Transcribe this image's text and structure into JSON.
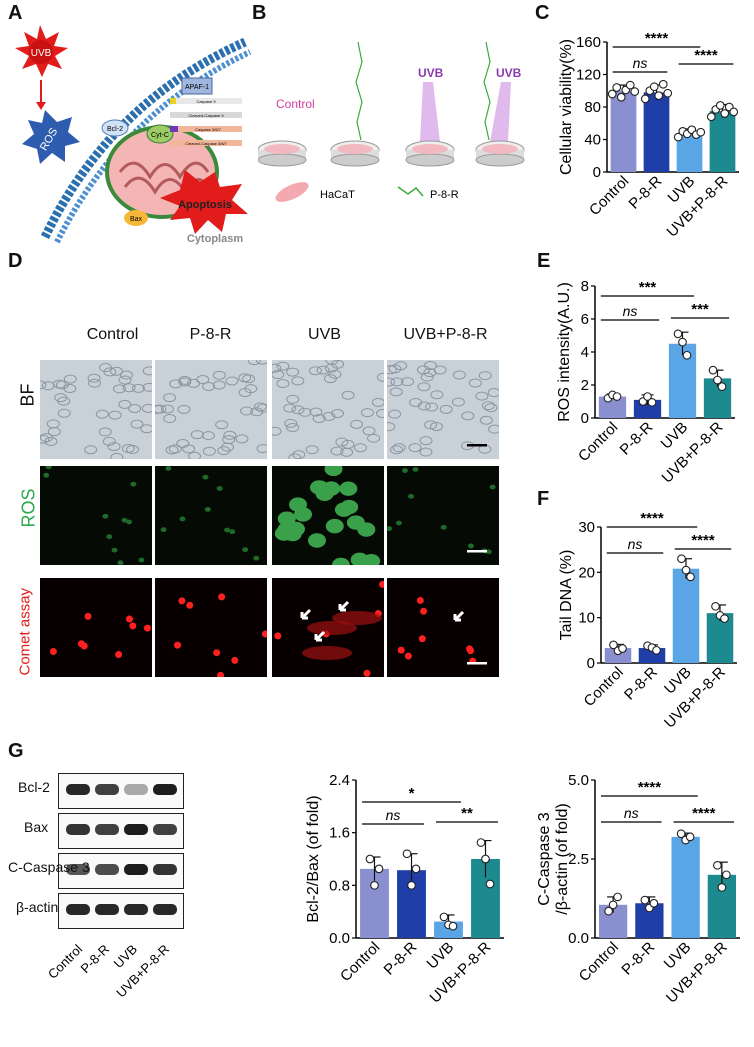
{
  "panels": {
    "A": "A",
    "B": "B",
    "C": "C",
    "D": "D",
    "E": "E",
    "F": "F",
    "G": "G"
  },
  "colors": {
    "control": "#8a8fd0",
    "p8r": "#1f3ea8",
    "uvb": "#5aa5e6",
    "combo": "#1c8a8e",
    "red": "#e21b1b",
    "micro_green": "#0a1a0a"
  },
  "panelA": {
    "uvb": "UVB",
    "ros": "ROS",
    "bcl2": "Bcl-2",
    "cytc": "Cyt-C",
    "bax": "Bax",
    "apaf": "APAF-1",
    "apoptosis": "Apoptosis",
    "cytoplasm": "Cytoplasm",
    "cascade": [
      "Caspase 9",
      "Cleaved-Caspase 9",
      "Caspase 3/6/7",
      "Cleaved-Caspase 3/6/7"
    ]
  },
  "panelB": {
    "control": "Control",
    "uvb1": "UVB",
    "uvb2": "UVB",
    "hacat": "HaCaT",
    "p8r": "P-8-R"
  },
  "panelD": {
    "columns": [
      "Control",
      "P-8-R",
      "UVB",
      "UVB+P-8-R"
    ],
    "rows": [
      "BF",
      "ROS",
      "Comet assay"
    ]
  },
  "panelG": {
    "bands": [
      "Bcl-2",
      "Bax",
      "C-Caspase 3",
      "β-actin"
    ],
    "lanes": [
      "Control",
      "P-8-R",
      "UVB",
      "UVB+P-8-R"
    ]
  },
  "chart_data": [
    {
      "id": "C",
      "type": "bar",
      "categories": [
        "Control",
        "P-8-R",
        "UVB",
        "UVB+P-8-R"
      ],
      "values": [
        100,
        98,
        48,
        75
      ],
      "errors": [
        7,
        9,
        5,
        8
      ],
      "points": [
        [
          96,
          104,
          92,
          101,
          107,
          99
        ],
        [
          90,
          100,
          105,
          94,
          108,
          97
        ],
        [
          43,
          50,
          47,
          52,
          46,
          49
        ],
        [
          68,
          77,
          82,
          72,
          80,
          74
        ]
      ],
      "ylabel": "Cellular viability(%)",
      "ylim": [
        0,
        160
      ],
      "yticks": [
        0,
        40,
        80,
        120,
        160
      ],
      "annotations": [
        {
          "from": 0,
          "to": 1,
          "text": "ns"
        },
        {
          "from": 0,
          "to": 2,
          "text": "****"
        },
        {
          "from": 2,
          "to": 3,
          "text": "****"
        }
      ]
    },
    {
      "id": "E",
      "type": "bar",
      "categories": [
        "Control",
        "P-8-R",
        "UVB",
        "UVB+P-8-R"
      ],
      "values": [
        1.3,
        1.1,
        4.5,
        2.4
      ],
      "errors": [
        0.15,
        0.3,
        0.7,
        0.5
      ],
      "points": [
        [
          1.2,
          1.4,
          1.3
        ],
        [
          1.0,
          1.3,
          0.95
        ],
        [
          5.1,
          4.6,
          3.8
        ],
        [
          2.9,
          2.3,
          1.9
        ]
      ],
      "ylabel": "ROS  intensity(A.U.)",
      "ylim": [
        0,
        8
      ],
      "yticks": [
        0,
        2,
        4,
        6,
        8
      ],
      "annotations": [
        {
          "from": 0,
          "to": 1,
          "text": "ns"
        },
        {
          "from": 0,
          "to": 2,
          "text": "***"
        },
        {
          "from": 2,
          "to": 3,
          "text": "***"
        }
      ]
    },
    {
      "id": "F",
      "type": "bar",
      "categories": [
        "Control",
        "P-8-R",
        "UVB",
        "UVB+P-8-R"
      ],
      "values": [
        3.3,
        3.3,
        20.8,
        11
      ],
      "errors": [
        0.8,
        0.7,
        2.2,
        1.8
      ],
      "points": [
        [
          4,
          2.7,
          3.2
        ],
        [
          3.8,
          3.4,
          2.8
        ],
        [
          23,
          20.5,
          19
        ],
        [
          12.5,
          10.5,
          9.8
        ]
      ],
      "ylabel": "Tail DNA (%)",
      "ylim": [
        0,
        30
      ],
      "yticks": [
        0,
        10,
        20,
        30
      ],
      "annotations": [
        {
          "from": 0,
          "to": 1,
          "text": "ns"
        },
        {
          "from": 0,
          "to": 2,
          "text": "****"
        },
        {
          "from": 2,
          "to": 3,
          "text": "****"
        }
      ]
    },
    {
      "id": "G1",
      "type": "bar",
      "categories": [
        "Control",
        "P-8-R",
        "UVB",
        "UVB+P-8-R"
      ],
      "values": [
        1.05,
        1.03,
        0.25,
        1.2
      ],
      "errors": [
        0.18,
        0.25,
        0.1,
        0.28
      ],
      "points": [
        [
          1.2,
          0.8,
          1.05
        ],
        [
          1.28,
          0.8,
          1.05
        ],
        [
          0.32,
          0.2,
          0.18
        ],
        [
          1.45,
          1.2,
          0.82
        ]
      ],
      "ylabel": "Bcl-2/Bax (of fold)",
      "ylim": [
        0,
        2.4
      ],
      "yticks": [
        "0.0",
        "0.8",
        "1.6",
        "2.4"
      ],
      "annotations": [
        {
          "from": 0,
          "to": 1,
          "text": "ns"
        },
        {
          "from": 0,
          "to": 2,
          "text": "*"
        },
        {
          "from": 2,
          "to": 3,
          "text": "**"
        }
      ]
    },
    {
      "id": "G2",
      "type": "bar",
      "categories": [
        "Control",
        "P-8-R",
        "UVB",
        "UVB+P-8-R"
      ],
      "values": [
        1.05,
        1.1,
        3.2,
        2.0
      ],
      "errors": [
        0.25,
        0.2,
        0.12,
        0.4
      ],
      "points": [
        [
          0.85,
          1.05,
          1.3
        ],
        [
          1.2,
          0.95,
          1.1
        ],
        [
          3.3,
          3.1,
          3.2
        ],
        [
          2.3,
          1.6,
          2.0
        ]
      ],
      "ylabel": "C-Caspase 3",
      "ylabel2": "/β-actin (of fold)",
      "ylim": [
        0,
        5
      ],
      "yticks": [
        "0.0",
        "2.5",
        "5.0"
      ],
      "annotations": [
        {
          "from": 0,
          "to": 1,
          "text": "ns"
        },
        {
          "from": 0,
          "to": 2,
          "text": "****"
        },
        {
          "from": 2,
          "to": 3,
          "text": "****"
        }
      ]
    }
  ]
}
